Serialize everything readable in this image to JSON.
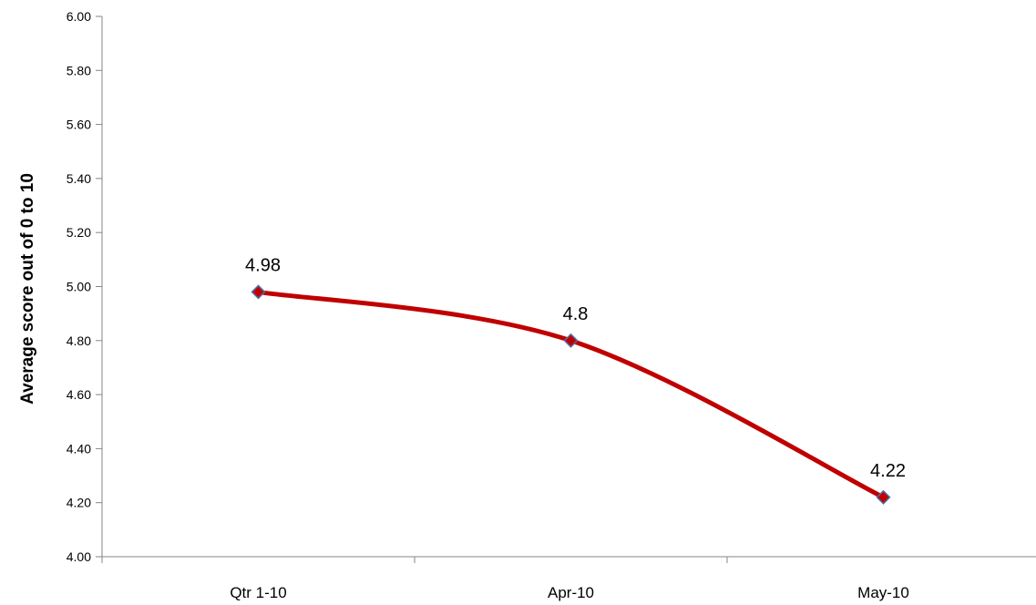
{
  "chart_data": {
    "type": "line",
    "title": "",
    "xlabel": "",
    "ylabel": "Average score out of 0 to 10",
    "categories": [
      "Qtr 1-10",
      "Apr-10",
      "May-10"
    ],
    "series": [
      {
        "values": [
          4.98,
          4.8,
          4.22
        ],
        "data_labels": [
          "4.98",
          "4.8",
          "4.22"
        ],
        "color": "#C00000",
        "marker_color": "#C00000",
        "marker_edge_color": "#4F6FA8"
      }
    ],
    "ylim": [
      4.0,
      6.0
    ],
    "yticks": [
      "4.00",
      "4.20",
      "4.40",
      "4.60",
      "4.80",
      "5.00",
      "5.20",
      "5.40",
      "5.60",
      "5.80",
      "6.00"
    ],
    "grid": false,
    "legend": "none",
    "smooth": true
  }
}
